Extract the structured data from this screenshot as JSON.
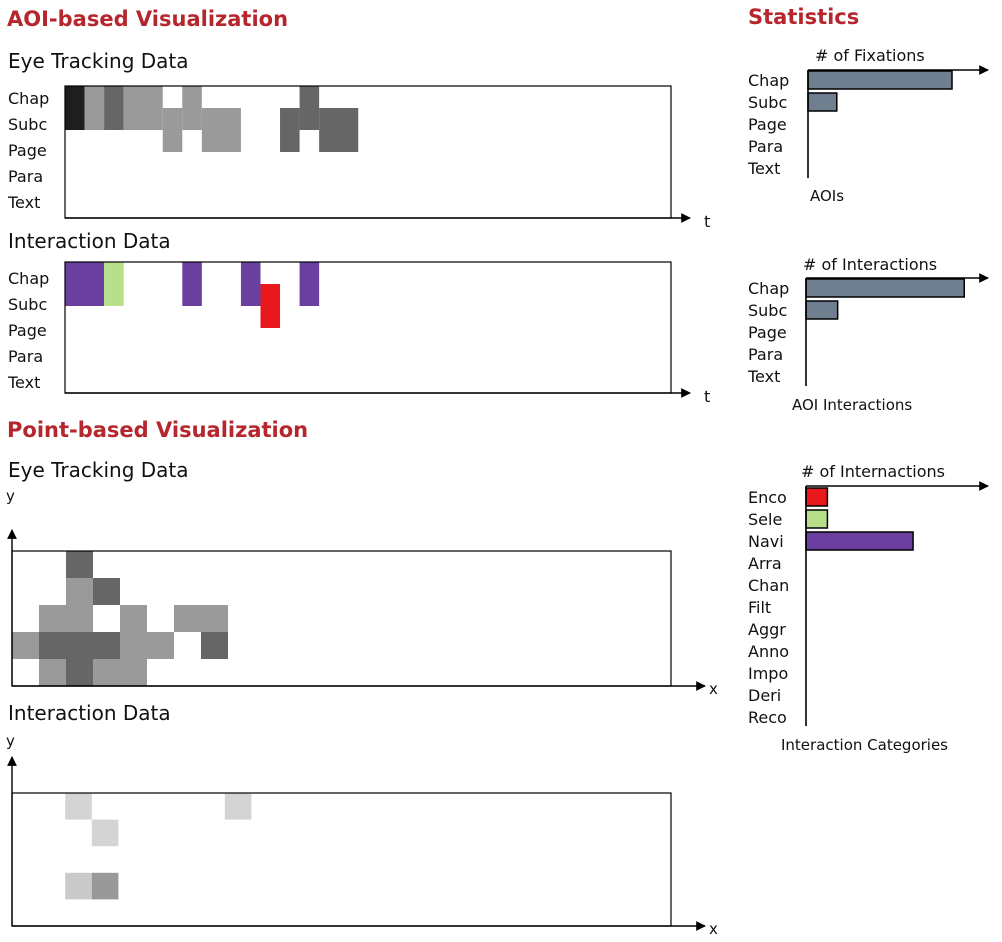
{
  "sections": {
    "aoi_title": "AOI-based Visualization",
    "point_title": "Point-based Visualization",
    "stats_title": "Statistics"
  },
  "chart_data": [
    {
      "type": "heatmap",
      "title": "Eye Tracking Data",
      "xlabel": "t",
      "rows": [
        "Chap",
        "Subc",
        "Page",
        "Para",
        "Text"
      ],
      "cols": 31,
      "cells": [
        {
          "row": 0,
          "col": 0,
          "span": 1,
          "shade": "#1e1e1e"
        },
        {
          "row": 1,
          "col": 0,
          "span": 1,
          "shade": "#1e1e1e"
        },
        {
          "row": 0,
          "col": 1,
          "span": 1,
          "shade": "#9a9a9a"
        },
        {
          "row": 1,
          "col": 1,
          "span": 1,
          "shade": "#9a9a9a"
        },
        {
          "row": 0,
          "col": 2,
          "span": 1,
          "shade": "#666666"
        },
        {
          "row": 1,
          "col": 2,
          "span": 1,
          "shade": "#666666"
        },
        {
          "row": 0,
          "col": 3,
          "span": 2,
          "shade": "#9a9a9a"
        },
        {
          "row": 1,
          "col": 3,
          "span": 2,
          "shade": "#9a9a9a"
        },
        {
          "row": 0,
          "col": 6,
          "span": 1,
          "shade": "#9a9a9a"
        },
        {
          "row": 1,
          "col": 5,
          "span": 1,
          "shade": "#9a9a9a"
        },
        {
          "row": 1,
          "col": 6,
          "span": 1,
          "shade": "#9a9a9a"
        },
        {
          "row": 1,
          "col": 7,
          "span": 2,
          "shade": "#9a9a9a"
        },
        {
          "row": 2,
          "col": 5,
          "span": 1,
          "shade": "#9a9a9a"
        },
        {
          "row": 2,
          "col": 7,
          "span": 2,
          "shade": "#9a9a9a"
        },
        {
          "row": 0,
          "col": 12,
          "span": 1,
          "shade": "#666666"
        },
        {
          "row": 1,
          "col": 11,
          "span": 1,
          "shade": "#666666"
        },
        {
          "row": 1,
          "col": 12,
          "span": 1,
          "shade": "#666666"
        },
        {
          "row": 1,
          "col": 13,
          "span": 2,
          "shade": "#666666"
        },
        {
          "row": 2,
          "col": 11,
          "span": 1,
          "shade": "#666666"
        },
        {
          "row": 2,
          "col": 13,
          "span": 2,
          "shade": "#666666"
        }
      ]
    },
    {
      "type": "heatmap",
      "title": "Interaction Data",
      "xlabel": "t",
      "rows": [
        "Chap",
        "Subc",
        "Page",
        "Para",
        "Text"
      ],
      "cols": 31,
      "cells": [
        {
          "row": 0,
          "col": 0,
          "span": 2,
          "shade": "#6b3fa0"
        },
        {
          "row": 1,
          "col": 0,
          "span": 2,
          "shade": "#6b3fa0"
        },
        {
          "row": 0,
          "col": 2,
          "span": 1,
          "shade": "#b8e08a"
        },
        {
          "row": 1,
          "col": 2,
          "span": 1,
          "shade": "#b8e08a"
        },
        {
          "row": 0,
          "col": 6,
          "span": 1,
          "shade": "#6b3fa0"
        },
        {
          "row": 1,
          "col": 6,
          "span": 1,
          "shade": "#6b3fa0"
        },
        {
          "row": 0,
          "col": 9,
          "span": 1,
          "shade": "#6b3fa0"
        },
        {
          "row": 1,
          "col": 9,
          "span": 1,
          "shade": "#6b3fa0"
        },
        {
          "row": 1,
          "col": 10,
          "span": 1,
          "shade": "#e8181c"
        },
        {
          "row": 2,
          "col": 10,
          "span": 1,
          "shade": "#e8181c"
        },
        {
          "row": 0,
          "col": 12,
          "span": 1,
          "shade": "#6b3fa0"
        },
        {
          "row": 1,
          "col": 12,
          "span": 1,
          "shade": "#6b3fa0"
        }
      ]
    },
    {
      "type": "heatmap",
      "title": "Eye Tracking Data",
      "xlabel": "x",
      "ylabel": "y",
      "grid_rows": 5,
      "cells": [
        {
          "row": 0,
          "col": 2,
          "shade": "#666666"
        },
        {
          "row": 1,
          "col": 2,
          "shade": "#9a9a9a"
        },
        {
          "row": 1,
          "col": 3,
          "shade": "#666666"
        },
        {
          "row": 2,
          "col": 1,
          "shade": "#9a9a9a"
        },
        {
          "row": 2,
          "col": 2,
          "shade": "#9a9a9a"
        },
        {
          "row": 2,
          "col": 4,
          "shade": "#9a9a9a"
        },
        {
          "row": 2,
          "col": 6,
          "shade": "#9a9a9a"
        },
        {
          "row": 2,
          "col": 7,
          "shade": "#9a9a9a"
        },
        {
          "row": 3,
          "col": 0,
          "shade": "#9a9a9a"
        },
        {
          "row": 3,
          "col": 1,
          "shade": "#666666"
        },
        {
          "row": 3,
          "col": 2,
          "shade": "#666666"
        },
        {
          "row": 3,
          "col": 3,
          "shade": "#666666"
        },
        {
          "row": 3,
          "col": 4,
          "shade": "#9a9a9a"
        },
        {
          "row": 3,
          "col": 5,
          "shade": "#9a9a9a"
        },
        {
          "row": 3,
          "col": 7,
          "shade": "#666666"
        },
        {
          "row": 4,
          "col": 1,
          "shade": "#9a9a9a"
        },
        {
          "row": 4,
          "col": 2,
          "shade": "#666666"
        },
        {
          "row": 4,
          "col": 3,
          "shade": "#9a9a9a"
        },
        {
          "row": 4,
          "col": 4,
          "shade": "#9a9a9a"
        }
      ]
    },
    {
      "type": "heatmap",
      "title": "Interaction Data",
      "xlabel": "x",
      "ylabel": "y",
      "grid_rows": 5,
      "cells": [
        {
          "row": 0,
          "col": 2,
          "shade": "#d4d4d4"
        },
        {
          "row": 0,
          "col": 8,
          "shade": "#d4d4d4"
        },
        {
          "row": 1,
          "col": 3,
          "shade": "#d4d4d4"
        },
        {
          "row": 3,
          "col": 2,
          "shade": "#cacaca"
        },
        {
          "row": 3,
          "col": 3,
          "shade": "#999999"
        }
      ]
    },
    {
      "type": "bar",
      "orientation": "horizontal",
      "title": "# of Fixations",
      "xlabel": "AOIs",
      "categories": [
        "Chap",
        "Subc",
        "Page",
        "Para",
        "Text"
      ],
      "values": [
        10,
        2,
        0,
        0,
        0
      ],
      "xlim": [
        0,
        12.5
      ],
      "color": "#6f7f8f"
    },
    {
      "type": "bar",
      "orientation": "horizontal",
      "title": "# of Interactions",
      "xlabel": "AOI Interactions",
      "categories": [
        "Chap",
        "Subc",
        "Page",
        "Para",
        "Text"
      ],
      "values": [
        10,
        2,
        0,
        0,
        0
      ],
      "xlim": [
        0,
        11.5
      ],
      "color": "#6f7f8f"
    },
    {
      "type": "bar",
      "orientation": "horizontal",
      "title": "# of Internactions",
      "xlabel": "Interaction Categories",
      "categories": [
        "Enco",
        "Sele",
        "Navi",
        "Arra",
        "Chan",
        "Filt",
        "Aggr",
        "Anno",
        "Impo",
        "Deri",
        "Reco"
      ],
      "values": [
        1,
        1,
        5,
        0,
        0,
        0,
        0,
        0,
        0,
        0,
        0
      ],
      "xlim": [
        0,
        8.5
      ],
      "colors": [
        "#e8181c",
        "#b8e08a",
        "#6b3fa0",
        "#6b3fa0",
        "#6b3fa0",
        "#6b3fa0",
        "#6b3fa0",
        "#6b3fa0",
        "#6b3fa0",
        "#6b3fa0",
        "#6b3fa0"
      ]
    }
  ]
}
